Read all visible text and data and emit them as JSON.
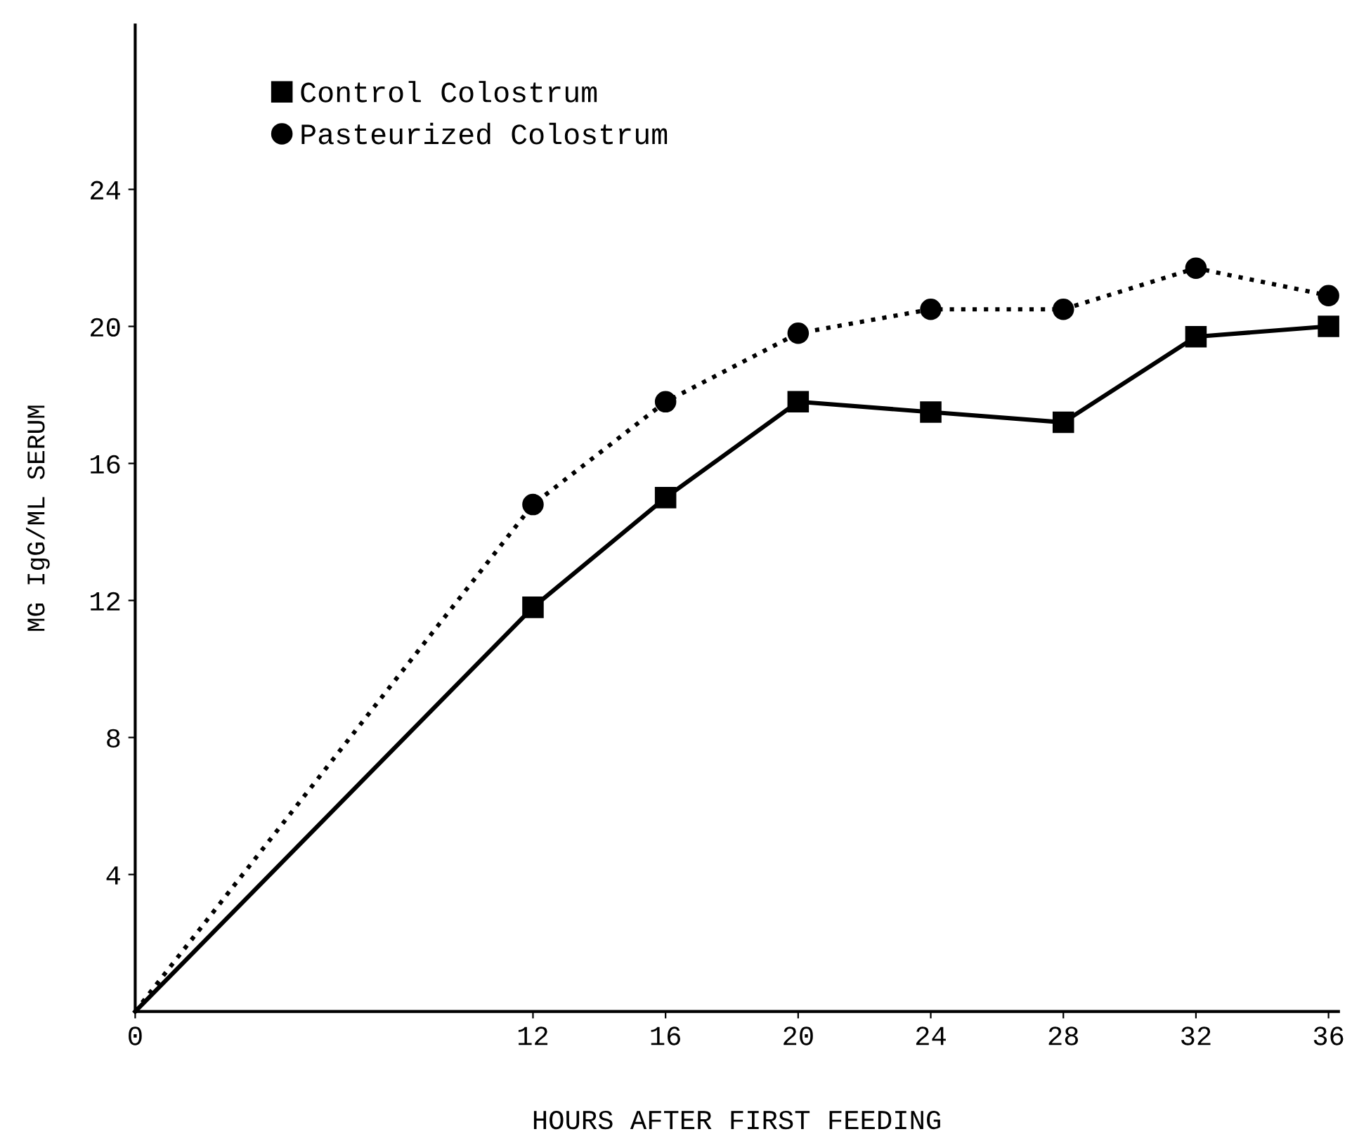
{
  "chart_data": {
    "type": "line",
    "xlabel": "HOURS AFTER FIRST FEEDING",
    "ylabel": "MG IgG/ML SERUM",
    "xlim": [
      0,
      36.3
    ],
    "ylim": [
      0,
      28.8
    ],
    "xticks": [
      0,
      12,
      16,
      20,
      24,
      28,
      32,
      36
    ],
    "yticks": [
      4,
      8,
      12,
      16,
      20,
      24
    ],
    "grid": false,
    "legend": "top left",
    "series": [
      {
        "name": "Control Colostrum",
        "color": "#000000",
        "marker": "square",
        "line_style": "solid",
        "x": [
          0,
          12,
          16,
          20,
          24,
          28,
          32,
          36
        ],
        "values": [
          0,
          11.8,
          15,
          17.8,
          17.5,
          17.2,
          19.7,
          20
        ]
      },
      {
        "name": "Pasteurized Colostrum",
        "color": "#000000",
        "marker": "circle",
        "line_style": "dotted",
        "x": [
          0,
          12,
          16,
          20,
          24,
          28,
          32,
          36
        ],
        "values": [
          0,
          14.8,
          17.8,
          19.8,
          20.5,
          20.5,
          21.7,
          20.9
        ]
      }
    ]
  }
}
